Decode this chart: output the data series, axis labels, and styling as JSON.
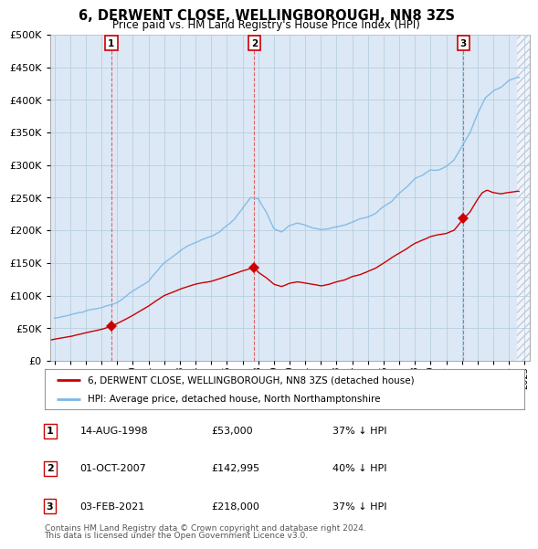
{
  "title": "6, DERWENT CLOSE, WELLINGBOROUGH, NN8 3ZS",
  "subtitle": "Price paid vs. HM Land Registry's House Price Index (HPI)",
  "legend_line1": "6, DERWENT CLOSE, WELLINGBOROUGH, NN8 3ZS (detached house)",
  "legend_line2": "HPI: Average price, detached house, North Northamptonshire",
  "footer1": "Contains HM Land Registry data © Crown copyright and database right 2024.",
  "footer2": "This data is licensed under the Open Government Licence v3.0.",
  "transactions": [
    {
      "num": 1,
      "date": "14-AUG-1998",
      "price": "£53,000",
      "pct": "37% ↓ HPI",
      "year": 1998.62
    },
    {
      "num": 2,
      "date": "01-OCT-2007",
      "price": "£142,995",
      "pct": "40% ↓ HPI",
      "year": 2007.75
    },
    {
      "num": 3,
      "date": "03-FEB-2021",
      "price": "£218,000",
      "pct": "37% ↓ HPI",
      "year": 2021.09
    }
  ],
  "transaction_prices": [
    53000,
    142995,
    218000
  ],
  "hpi_color": "#7ab8e8",
  "price_color": "#cc0000",
  "chart_bg_color": "#dce8f5",
  "background_color": "#ffffff",
  "grid_color": "#b8cfe0",
  "vline_color": "#dd4444",
  "ylim": [
    0,
    500000
  ],
  "yticks": [
    0,
    50000,
    100000,
    150000,
    200000,
    250000,
    300000,
    350000,
    400000,
    450000,
    500000
  ],
  "xlim_start": 1994.7,
  "xlim_end": 2025.3
}
